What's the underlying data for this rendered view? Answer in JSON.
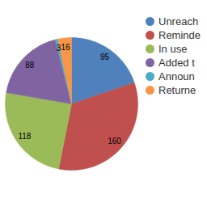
{
  "chart_data": {
    "type": "pie",
    "categories": [
      "Unreach",
      "Reminde",
      "In use",
      "Added t",
      "Announ",
      "Returne"
    ],
    "values": [
      95,
      160,
      118,
      88,
      3,
      16
    ],
    "colors": [
      "#4f81bd",
      "#c0504d",
      "#9bbb59",
      "#8064a2",
      "#4bacc6",
      "#f79646"
    ],
    "data_labels": true,
    "legend": "right"
  }
}
